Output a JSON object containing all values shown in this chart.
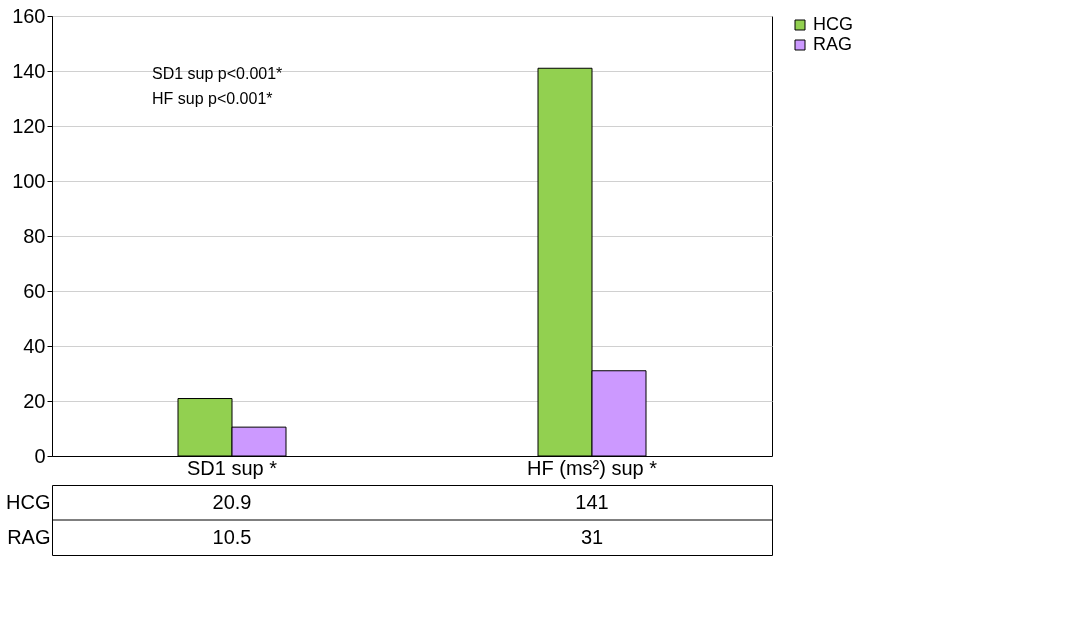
{
  "chart_data": {
    "type": "bar",
    "categories": [
      "SD1 sup *",
      "HF (ms²) sup *"
    ],
    "series": [
      {
        "name": "HCG",
        "color": "#92d050",
        "values": [
          20.9,
          141
        ]
      },
      {
        "name": "RAG",
        "color": "#cc99ff",
        "values": [
          10.5,
          31
        ]
      }
    ],
    "ylim": [
      0,
      160
    ],
    "yticks": [
      0,
      20,
      40,
      60,
      80,
      100,
      120,
      140,
      160
    ],
    "grid": "y",
    "legend": "right",
    "data_labels": true,
    "annotations": [
      "SD1 sup p<0.001*",
      "HF sup p<0.001*"
    ]
  }
}
